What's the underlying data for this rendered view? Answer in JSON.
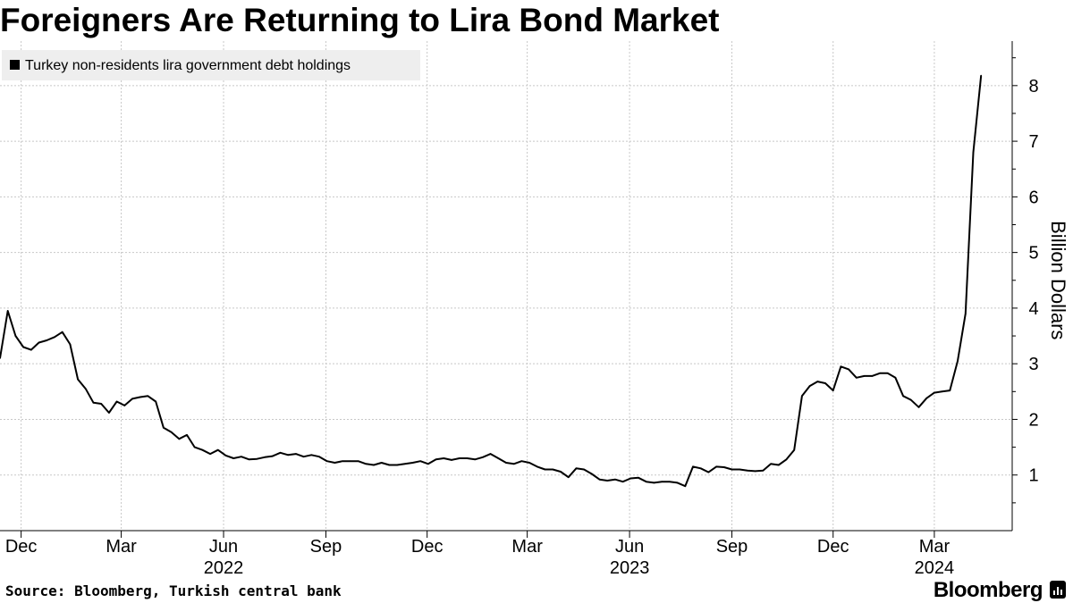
{
  "title": "Foreigners Are Returning to Lira Bond Market",
  "source": "Source: Bloomberg, Turkish central bank",
  "brand": "Bloomberg",
  "colors": {
    "line": "#000000",
    "grid": "#c8c8c8",
    "legend_bg": "#eeeeee"
  },
  "chart_data": {
    "type": "line",
    "title": "Foreigners Are Returning to Lira Bond Market",
    "ylabel": "Billion Dollars",
    "ylim": [
      0,
      8.8
    ],
    "y_axis_side": "right",
    "yticks": [
      1,
      2,
      3,
      4,
      5,
      6,
      7,
      8
    ],
    "xlim": [
      "2021-11-12",
      "2024-05-10"
    ],
    "x_month_ticks": [
      {
        "date": "2021-12-01",
        "label": "Dec"
      },
      {
        "date": "2022-03-01",
        "label": "Mar"
      },
      {
        "date": "2022-06-01",
        "label": "Jun"
      },
      {
        "date": "2022-09-01",
        "label": "Sep"
      },
      {
        "date": "2022-12-01",
        "label": "Dec"
      },
      {
        "date": "2023-03-01",
        "label": "Mar"
      },
      {
        "date": "2023-06-01",
        "label": "Jun"
      },
      {
        "date": "2023-09-01",
        "label": "Sep"
      },
      {
        "date": "2023-12-01",
        "label": "Dec"
      },
      {
        "date": "2024-03-01",
        "label": "Mar"
      }
    ],
    "x_year_labels": [
      {
        "date": "2022-06-01",
        "label": "2022"
      },
      {
        "date": "2023-06-01",
        "label": "2023"
      },
      {
        "date": "2024-03-01",
        "label": "2024"
      }
    ],
    "grid": true,
    "legend": "top-left",
    "series": [
      {
        "name": "Turkey non-residents lira government debt holdings",
        "points": [
          [
            "2021-11-12",
            3.1
          ],
          [
            "2021-11-19",
            3.95
          ],
          [
            "2021-11-26",
            3.5
          ],
          [
            "2021-12-03",
            3.3
          ],
          [
            "2021-12-10",
            3.25
          ],
          [
            "2021-12-17",
            3.38
          ],
          [
            "2021-12-24",
            3.42
          ],
          [
            "2021-12-31",
            3.48
          ],
          [
            "2022-01-07",
            3.57
          ],
          [
            "2022-01-14",
            3.35
          ],
          [
            "2022-01-21",
            2.72
          ],
          [
            "2022-01-28",
            2.55
          ],
          [
            "2022-02-04",
            2.3
          ],
          [
            "2022-02-11",
            2.28
          ],
          [
            "2022-02-18",
            2.12
          ],
          [
            "2022-02-25",
            2.32
          ],
          [
            "2022-03-04",
            2.25
          ],
          [
            "2022-03-11",
            2.37
          ],
          [
            "2022-03-18",
            2.4
          ],
          [
            "2022-03-25",
            2.42
          ],
          [
            "2022-04-01",
            2.32
          ],
          [
            "2022-04-08",
            1.85
          ],
          [
            "2022-04-15",
            1.77
          ],
          [
            "2022-04-22",
            1.65
          ],
          [
            "2022-04-29",
            1.72
          ],
          [
            "2022-05-06",
            1.5
          ],
          [
            "2022-05-13",
            1.45
          ],
          [
            "2022-05-20",
            1.38
          ],
          [
            "2022-05-27",
            1.45
          ],
          [
            "2022-06-03",
            1.35
          ],
          [
            "2022-06-10",
            1.3
          ],
          [
            "2022-06-17",
            1.33
          ],
          [
            "2022-06-24",
            1.28
          ],
          [
            "2022-07-01",
            1.29
          ],
          [
            "2022-07-08",
            1.32
          ],
          [
            "2022-07-15",
            1.34
          ],
          [
            "2022-07-22",
            1.4
          ],
          [
            "2022-07-29",
            1.36
          ],
          [
            "2022-08-05",
            1.38
          ],
          [
            "2022-08-12",
            1.33
          ],
          [
            "2022-08-19",
            1.36
          ],
          [
            "2022-08-26",
            1.33
          ],
          [
            "2022-09-02",
            1.25
          ],
          [
            "2022-09-09",
            1.22
          ],
          [
            "2022-09-16",
            1.25
          ],
          [
            "2022-09-23",
            1.25
          ],
          [
            "2022-09-30",
            1.25
          ],
          [
            "2022-10-07",
            1.2
          ],
          [
            "2022-10-14",
            1.18
          ],
          [
            "2022-10-21",
            1.22
          ],
          [
            "2022-10-28",
            1.18
          ],
          [
            "2022-11-04",
            1.18
          ],
          [
            "2022-11-11",
            1.2
          ],
          [
            "2022-11-18",
            1.22
          ],
          [
            "2022-11-25",
            1.25
          ],
          [
            "2022-12-02",
            1.2
          ],
          [
            "2022-12-09",
            1.28
          ],
          [
            "2022-12-16",
            1.3
          ],
          [
            "2022-12-23",
            1.27
          ],
          [
            "2022-12-30",
            1.3
          ],
          [
            "2023-01-06",
            1.3
          ],
          [
            "2023-01-13",
            1.28
          ],
          [
            "2023-01-20",
            1.32
          ],
          [
            "2023-01-27",
            1.38
          ],
          [
            "2023-02-03",
            1.3
          ],
          [
            "2023-02-10",
            1.22
          ],
          [
            "2023-02-17",
            1.2
          ],
          [
            "2023-02-24",
            1.25
          ],
          [
            "2023-03-03",
            1.22
          ],
          [
            "2023-03-10",
            1.15
          ],
          [
            "2023-03-17",
            1.1
          ],
          [
            "2023-03-24",
            1.1
          ],
          [
            "2023-03-31",
            1.06
          ],
          [
            "2023-04-07",
            0.96
          ],
          [
            "2023-04-14",
            1.12
          ],
          [
            "2023-04-21",
            1.1
          ],
          [
            "2023-04-28",
            1.02
          ],
          [
            "2023-05-05",
            0.92
          ],
          [
            "2023-05-12",
            0.9
          ],
          [
            "2023-05-19",
            0.92
          ],
          [
            "2023-05-26",
            0.88
          ],
          [
            "2023-06-02",
            0.94
          ],
          [
            "2023-06-09",
            0.95
          ],
          [
            "2023-06-16",
            0.88
          ],
          [
            "2023-06-23",
            0.86
          ],
          [
            "2023-06-30",
            0.88
          ],
          [
            "2023-07-07",
            0.88
          ],
          [
            "2023-07-14",
            0.86
          ],
          [
            "2023-07-21",
            0.8
          ],
          [
            "2023-07-28",
            1.15
          ],
          [
            "2023-08-04",
            1.12
          ],
          [
            "2023-08-11",
            1.05
          ],
          [
            "2023-08-18",
            1.15
          ],
          [
            "2023-08-25",
            1.14
          ],
          [
            "2023-09-01",
            1.1
          ],
          [
            "2023-09-08",
            1.1
          ],
          [
            "2023-09-15",
            1.08
          ],
          [
            "2023-09-22",
            1.07
          ],
          [
            "2023-09-29",
            1.08
          ],
          [
            "2023-10-06",
            1.2
          ],
          [
            "2023-10-13",
            1.18
          ],
          [
            "2023-10-20",
            1.28
          ],
          [
            "2023-10-27",
            1.45
          ],
          [
            "2023-11-03",
            2.42
          ],
          [
            "2023-11-10",
            2.6
          ],
          [
            "2023-11-17",
            2.68
          ],
          [
            "2023-11-24",
            2.65
          ],
          [
            "2023-12-01",
            2.52
          ],
          [
            "2023-12-08",
            2.95
          ],
          [
            "2023-12-15",
            2.9
          ],
          [
            "2023-12-22",
            2.75
          ],
          [
            "2023-12-29",
            2.78
          ],
          [
            "2024-01-05",
            2.78
          ],
          [
            "2024-01-12",
            2.83
          ],
          [
            "2024-01-19",
            2.83
          ],
          [
            "2024-01-26",
            2.75
          ],
          [
            "2024-02-02",
            2.42
          ],
          [
            "2024-02-09",
            2.35
          ],
          [
            "2024-02-16",
            2.22
          ],
          [
            "2024-02-23",
            2.38
          ],
          [
            "2024-03-01",
            2.48
          ],
          [
            "2024-03-08",
            2.5
          ],
          [
            "2024-03-15",
            2.52
          ],
          [
            "2024-03-22",
            3.05
          ],
          [
            "2024-03-29",
            3.9
          ],
          [
            "2024-04-05",
            6.8
          ],
          [
            "2024-04-12",
            8.18
          ]
        ]
      }
    ]
  }
}
